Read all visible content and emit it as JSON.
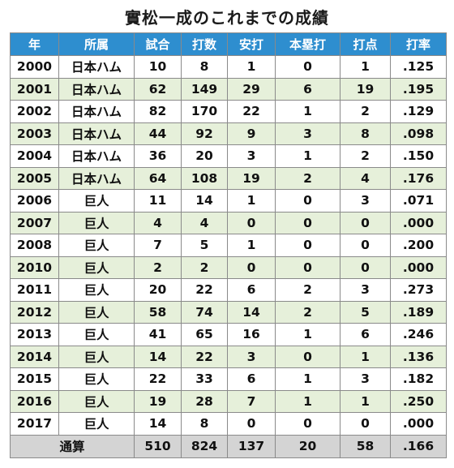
{
  "title": "實松一成のこれまでの成績",
  "headers": [
    "年",
    "所属",
    "試合",
    "打数",
    "安打",
    "本塁打",
    "打点",
    "打率"
  ],
  "rows": [
    [
      "2000",
      "日本ハム",
      "10",
      "8",
      "1",
      "0",
      "1",
      ".125"
    ],
    [
      "2001",
      "日本ハム",
      "62",
      "149",
      "29",
      "6",
      "19",
      ".195"
    ],
    [
      "2002",
      "日本ハム",
      "82",
      "170",
      "22",
      "1",
      "2",
      ".129"
    ],
    [
      "2003",
      "日本ハム",
      "44",
      "92",
      "9",
      "3",
      "8",
      ".098"
    ],
    [
      "2004",
      "日本ハム",
      "36",
      "20",
      "3",
      "1",
      "2",
      ".150"
    ],
    [
      "2005",
      "日本ハム",
      "64",
      "108",
      "19",
      "2",
      "4",
      ".176"
    ],
    [
      "2006",
      "巨人",
      "11",
      "14",
      "1",
      "0",
      "3",
      ".071"
    ],
    [
      "2007",
      "巨人",
      "4",
      "4",
      "0",
      "0",
      "0",
      ".000"
    ],
    [
      "2008",
      "巨人",
      "7",
      "5",
      "1",
      "0",
      "0",
      ".200"
    ],
    [
      "2010",
      "巨人",
      "2",
      "2",
      "0",
      "0",
      "0",
      ".000"
    ],
    [
      "2011",
      "巨人",
      "20",
      "22",
      "6",
      "2",
      "3",
      ".273"
    ],
    [
      "2012",
      "巨人",
      "58",
      "74",
      "14",
      "2",
      "5",
      ".189"
    ],
    [
      "2013",
      "巨人",
      "41",
      "65",
      "16",
      "1",
      "6",
      ".246"
    ],
    [
      "2014",
      "巨人",
      "14",
      "22",
      "3",
      "0",
      "1",
      ".136"
    ],
    [
      "2015",
      "巨人",
      "22",
      "33",
      "6",
      "1",
      "3",
      ".182"
    ],
    [
      "2016",
      "巨人",
      "19",
      "28",
      "7",
      "1",
      "1",
      ".250"
    ],
    [
      "2017",
      "巨人",
      "14",
      "8",
      "0",
      "0",
      "0",
      ".000"
    ]
  ],
  "total": {
    "label": "通算",
    "values": [
      "510",
      "824",
      "137",
      "20",
      "58",
      ".166"
    ]
  },
  "colors": {
    "header_bg": "#2e8ecf",
    "header_text": "#ffffff",
    "row_alt_bg": "#e6f0da",
    "total_bg": "#d4d4d4"
  }
}
